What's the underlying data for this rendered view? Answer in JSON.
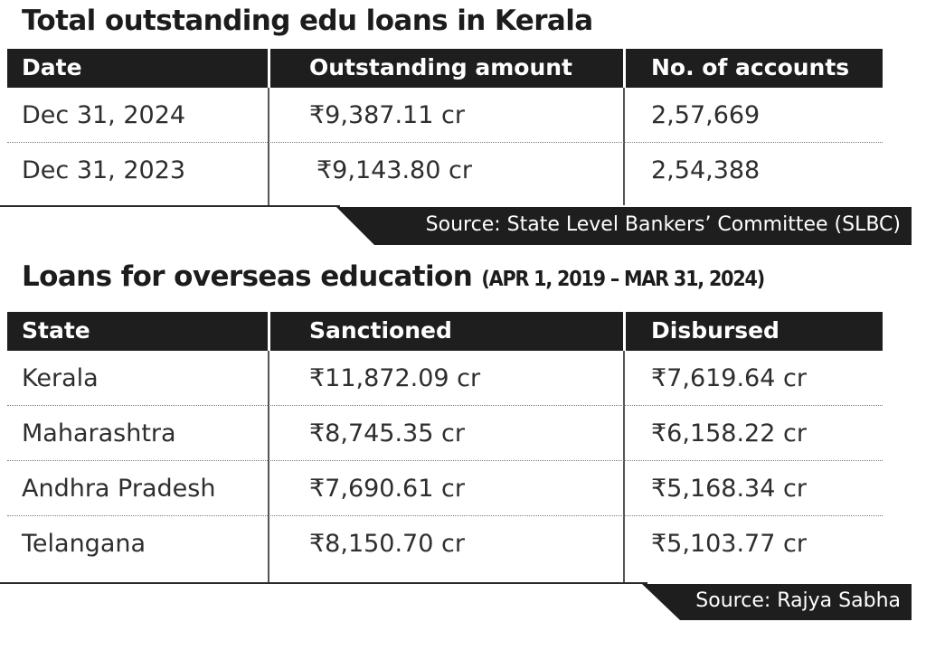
{
  "section1": {
    "title": "Total outstanding edu loans in Kerala",
    "headers": [
      "Date",
      "Outstanding amount",
      "No. of accounts"
    ],
    "rows": [
      [
        "Dec 31, 2024",
        "₹9,387.11 cr",
        "2,57,669"
      ],
      [
        "Dec 31, 2023",
        "₹9,143.80 cr",
        "2,54,388"
      ]
    ],
    "source": "Source: State Level Bankers’ Committee (SLBC)"
  },
  "section2": {
    "title": "Loans for overseas education",
    "subtitle": "(APR 1, 2019 – MAR 31, 2024)",
    "headers": [
      "State",
      "Sanctioned",
      "Disbursed"
    ],
    "rows": [
      [
        "Kerala",
        "₹11,872.09 cr",
        "₹7,619.64 cr"
      ],
      [
        "Maharashtra",
        "₹8,745.35 cr",
        "₹6,158.22 cr"
      ],
      [
        "Andhra Pradesh",
        "₹7,690.61 cr",
        "₹5,168.34 cr"
      ],
      [
        "Telangana",
        "₹8,150.70 cr",
        "₹5,103.77 cr"
      ]
    ],
    "source": "Source: Rajya Sabha"
  }
}
